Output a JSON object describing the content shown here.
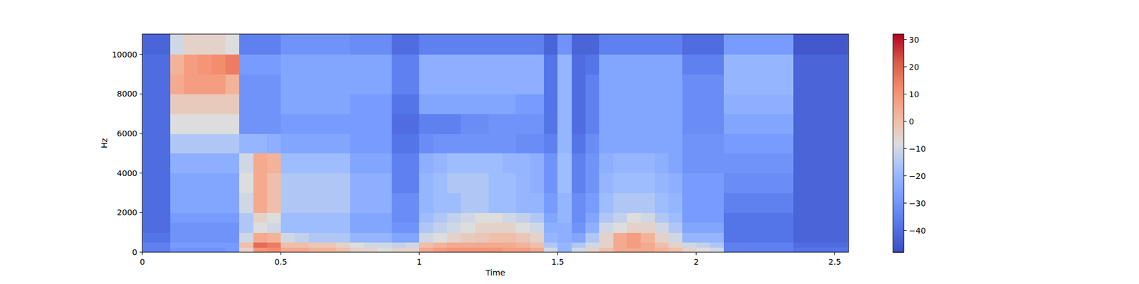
{
  "chart_data": {
    "type": "heatmap",
    "x_label": "Time",
    "y_label": "Hz",
    "xlim": [
      0,
      2.55
    ],
    "xticks": [
      0,
      0.5,
      1,
      1.5,
      2,
      2.5
    ],
    "ylim": [
      0,
      11025
    ],
    "yticks": [
      0,
      2000,
      4000,
      6000,
      8000,
      10000
    ],
    "x_bins": [
      0,
      0.05,
      0.1,
      0.15,
      0.2,
      0.25,
      0.3,
      0.35,
      0.4,
      0.45,
      0.5,
      0.55,
      0.6,
      0.65,
      0.7,
      0.75,
      0.8,
      0.85,
      0.9,
      0.95,
      1,
      1.05,
      1.1,
      1.15,
      1.2,
      1.25,
      1.3,
      1.35,
      1.4,
      1.45,
      1.5,
      1.55,
      1.6,
      1.65,
      1.7,
      1.75,
      1.8,
      1.85,
      1.9,
      1.95,
      2,
      2.05,
      2.1,
      2.15,
      2.2,
      2.25,
      2.3,
      2.35,
      2.4,
      2.45,
      2.5,
      2.55
    ],
    "y_bins": [
      0,
      250,
      500,
      1000,
      1500,
      2000,
      3000,
      4000,
      5000,
      6000,
      7000,
      8000,
      9000,
      10000,
      11025
    ],
    "cells": [
      [
        -35,
        -35,
        -30,
        -30,
        -30,
        -30,
        -28,
        -5,
        10,
        12,
        5,
        5,
        3,
        3,
        0,
        -5,
        -5,
        -8,
        -5,
        -5,
        5,
        8,
        10,
        10,
        10,
        10,
        8,
        8,
        5,
        -10,
        -20,
        -10,
        -5,
        0,
        5,
        5,
        5,
        3,
        0,
        -5,
        -8,
        -10,
        -35,
        -35,
        -35,
        -35,
        -35,
        -38,
        -38,
        -38,
        -38
      ],
      [
        -35,
        -35,
        -28,
        -28,
        -28,
        -28,
        -28,
        0,
        18,
        15,
        0,
        0,
        -2,
        -2,
        -5,
        -8,
        -10,
        -10,
        -12,
        -10,
        0,
        3,
        5,
        5,
        5,
        5,
        5,
        3,
        0,
        -15,
        -20,
        -15,
        -10,
        -5,
        5,
        8,
        5,
        0,
        -5,
        -10,
        -12,
        -15,
        -35,
        -35,
        -35,
        -35,
        -35,
        -40,
        -40,
        -40,
        -40
      ],
      [
        -38,
        -38,
        -30,
        -30,
        -30,
        -30,
        -30,
        -10,
        5,
        3,
        -10,
        -12,
        -15,
        -15,
        -15,
        -20,
        -20,
        -20,
        -25,
        -25,
        -10,
        -8,
        -5,
        -3,
        -2,
        0,
        0,
        -2,
        -5,
        -20,
        -22,
        -25,
        -15,
        -5,
        5,
        8,
        3,
        -5,
        -10,
        -20,
        -20,
        -20,
        -38,
        -38,
        -38,
        -38,
        -38,
        -42,
        -42,
        -42,
        -42
      ],
      [
        -40,
        -40,
        -30,
        -30,
        -30,
        -30,
        -30,
        -15,
        -8,
        -10,
        -18,
        -18,
        -18,
        -18,
        -18,
        -25,
        -25,
        -25,
        -30,
        -30,
        -15,
        -12,
        -10,
        -8,
        -5,
        -5,
        -5,
        -8,
        -10,
        -22,
        -22,
        -30,
        -22,
        -10,
        -8,
        -5,
        -5,
        -10,
        -15,
        -25,
        -25,
        -25,
        -38,
        -38,
        -38,
        -38,
        -38,
        -42,
        -42,
        -42,
        -42
      ],
      [
        -40,
        -40,
        -28,
        -28,
        -28,
        -28,
        -28,
        -15,
        -5,
        -8,
        -18,
        -18,
        -18,
        -18,
        -18,
        -25,
        -25,
        -25,
        -32,
        -32,
        -18,
        -15,
        -12,
        -10,
        -8,
        -8,
        -10,
        -12,
        -15,
        -25,
        -20,
        -32,
        -25,
        -15,
        -12,
        -8,
        -10,
        -15,
        -18,
        -28,
        -28,
        -28,
        -38,
        -38,
        -38,
        -38,
        -38,
        -42,
        -42,
        -42,
        -42
      ],
      [
        -40,
        -40,
        -25,
        -25,
        -25,
        -25,
        -25,
        -10,
        5,
        0,
        -15,
        -15,
        -15,
        -15,
        -15,
        -22,
        -22,
        -22,
        -32,
        -32,
        -20,
        -18,
        -18,
        -15,
        -15,
        -18,
        -18,
        -20,
        -20,
        -28,
        -20,
        -32,
        -28,
        -18,
        -15,
        -15,
        -15,
        -18,
        -20,
        -28,
        -28,
        -28,
        -35,
        -35,
        -35,
        -35,
        -35,
        -42,
        -42,
        -42,
        -42
      ],
      [
        -40,
        -40,
        -25,
        -25,
        -25,
        -25,
        -25,
        -8,
        5,
        0,
        -15,
        -15,
        -15,
        -15,
        -15,
        -22,
        -22,
        -22,
        -35,
        -35,
        -20,
        -18,
        -15,
        -15,
        -15,
        -18,
        -18,
        -20,
        -22,
        -30,
        -18,
        -35,
        -30,
        -20,
        -18,
        -18,
        -18,
        -20,
        -22,
        -28,
        -28,
        -28,
        -32,
        -32,
        -32,
        -32,
        -32,
        -42,
        -42,
        -42,
        -42
      ],
      [
        -40,
        -40,
        -22,
        -22,
        -22,
        -22,
        -22,
        -10,
        5,
        3,
        -18,
        -18,
        -18,
        -18,
        -18,
        -25,
        -25,
        -25,
        -35,
        -35,
        -22,
        -20,
        -18,
        -18,
        -18,
        -18,
        -20,
        -20,
        -22,
        -30,
        -18,
        -35,
        -30,
        -22,
        -20,
        -20,
        -20,
        -22,
        -25,
        -30,
        -30,
        -30,
        -30,
        -30,
        -30,
        -30,
        -30,
        -42,
        -42,
        -42,
        -42
      ],
      [
        -40,
        -40,
        -15,
        -15,
        -15,
        -15,
        -15,
        -20,
        -20,
        -22,
        -25,
        -25,
        -25,
        -25,
        -25,
        -28,
        -28,
        -28,
        -38,
        -38,
        -32,
        -30,
        -30,
        -30,
        -30,
        -30,
        -30,
        -32,
        -32,
        -35,
        -20,
        -38,
        -32,
        -25,
        -25,
        -25,
        -25,
        -25,
        -25,
        -30,
        -30,
        -30,
        -28,
        -28,
        -28,
        -28,
        -28,
        -42,
        -42,
        -42,
        -42
      ],
      [
        -40,
        -40,
        -8,
        -8,
        -8,
        -8,
        -8,
        -30,
        -30,
        -30,
        -28,
        -28,
        -28,
        -28,
        -28,
        -28,
        -28,
        -28,
        -40,
        -40,
        -35,
        -35,
        -35,
        -32,
        -32,
        -30,
        -30,
        -30,
        -30,
        -38,
        -20,
        -40,
        -35,
        -25,
        -25,
        -25,
        -25,
        -25,
        -25,
        -32,
        -32,
        -32,
        -25,
        -25,
        -25,
        -25,
        -25,
        -42,
        -42,
        -42,
        -42
      ],
      [
        -40,
        -40,
        -3,
        -3,
        -3,
        -3,
        -3,
        -30,
        -30,
        -30,
        -25,
        -25,
        -25,
        -25,
        -25,
        -28,
        -28,
        -28,
        -38,
        -38,
        -25,
        -25,
        -25,
        -25,
        -25,
        -25,
        -25,
        -28,
        -28,
        -38,
        -20,
        -40,
        -35,
        -25,
        -25,
        -25,
        -25,
        -25,
        -25,
        -32,
        -32,
        -32,
        -22,
        -22,
        -22,
        -22,
        -22,
        -42,
        -42,
        -42,
        -42
      ],
      [
        -40,
        -40,
        5,
        8,
        8,
        8,
        3,
        -30,
        -30,
        -30,
        -25,
        -25,
        -25,
        -25,
        -25,
        -25,
        -25,
        -25,
        -35,
        -35,
        -22,
        -22,
        -22,
        -22,
        -22,
        -22,
        -22,
        -22,
        -22,
        -38,
        -20,
        -40,
        -35,
        -25,
        -25,
        -25,
        -25,
        -25,
        -25,
        -32,
        -32,
        -32,
        -20,
        -20,
        -20,
        -20,
        -20,
        -42,
        -42,
        -42,
        -42
      ],
      [
        -40,
        -40,
        3,
        8,
        10,
        12,
        15,
        -28,
        -28,
        -28,
        -25,
        -25,
        -25,
        -25,
        -25,
        -25,
        -25,
        -25,
        -35,
        -35,
        -22,
        -22,
        -22,
        -22,
        -22,
        -22,
        -22,
        -22,
        -22,
        -38,
        -20,
        -40,
        -38,
        -25,
        -25,
        -25,
        -25,
        -25,
        -25,
        -35,
        -35,
        -35,
        -20,
        -20,
        -20,
        -20,
        -20,
        -42,
        -42,
        -42,
        -42
      ],
      [
        -42,
        -42,
        -10,
        -5,
        -5,
        -5,
        -8,
        -35,
        -35,
        -35,
        -30,
        -30,
        -30,
        -30,
        -30,
        -32,
        -32,
        -32,
        -40,
        -40,
        -35,
        -35,
        -35,
        -35,
        -35,
        -35,
        -35,
        -35,
        -35,
        -42,
        -30,
        -42,
        -42,
        -35,
        -35,
        -35,
        -35,
        -35,
        -35,
        -40,
        -40,
        -40,
        -28,
        -28,
        -28,
        -28,
        -28,
        -45,
        -45,
        -45,
        -45
      ]
    ],
    "colorbar_range": [
      -48,
      32
    ],
    "colorbar_ticks": [
      {
        "value": -40,
        "label": "−40"
      },
      {
        "value": -30,
        "label": "−30"
      },
      {
        "value": -20,
        "label": "−20"
      },
      {
        "value": -10,
        "label": "−10"
      },
      0,
      10,
      20,
      30
    ]
  }
}
